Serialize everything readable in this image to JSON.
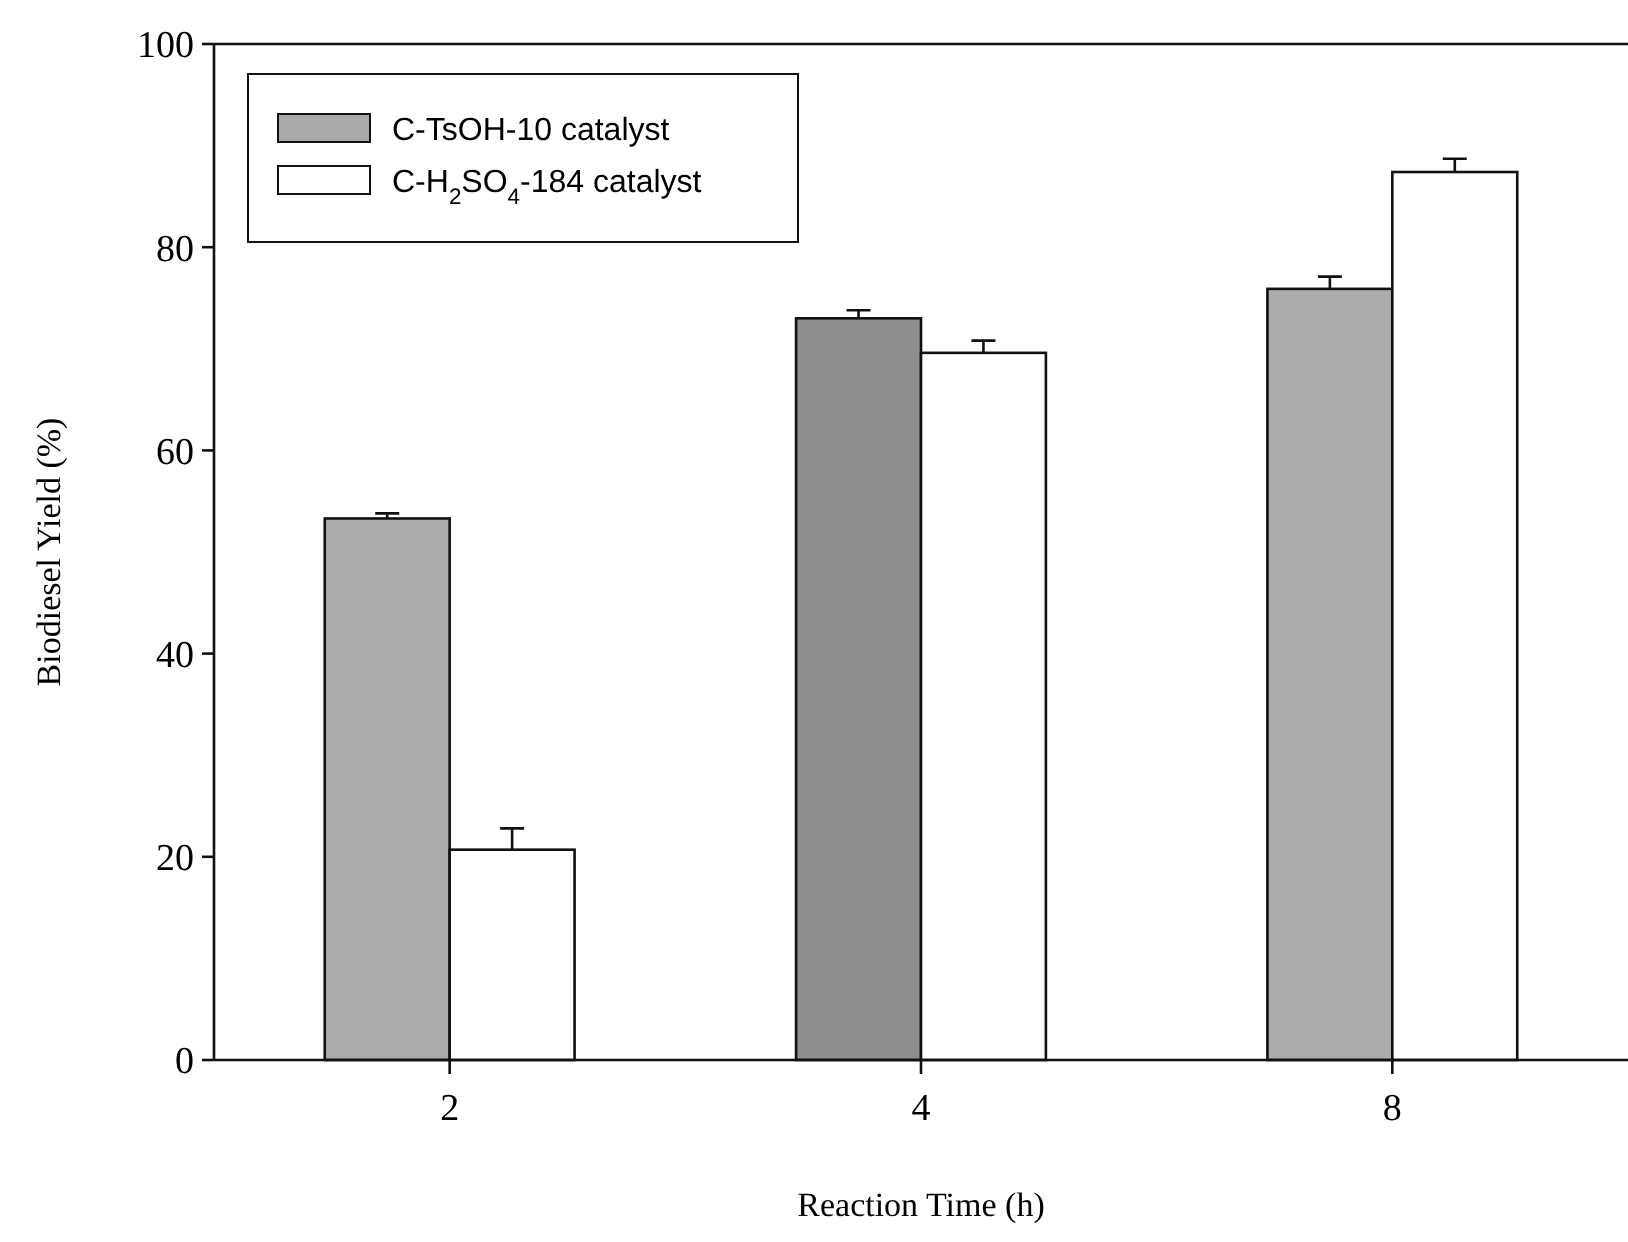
{
  "chart_data": {
    "type": "bar",
    "xlabel": "Reaction Time (h)",
    "ylabel": "Biodiesel Yield (%)",
    "categories": [
      "2",
      "4",
      "8"
    ],
    "series": [
      {
        "name": "C-TsOH-10 catalyst",
        "color": "#a9a9a9",
        "colors": [
          "#acacac",
          "#8e8e8e",
          "#acacac"
        ],
        "values": [
          53.3,
          73.0,
          75.9
        ],
        "errors": [
          0.5,
          0.8,
          1.2
        ]
      },
      {
        "name": "C-H$_{2}$SO$_{4}$-184 catalyst",
        "color": "#ffffff",
        "values": [
          20.7,
          69.6,
          87.4
        ],
        "errors": [
          2.1,
          1.2,
          1.3
        ]
      }
    ],
    "ylim": [
      0,
      100
    ],
    "yticks": [
      0,
      20,
      40,
      60,
      80,
      100
    ],
    "legend": "top left"
  }
}
